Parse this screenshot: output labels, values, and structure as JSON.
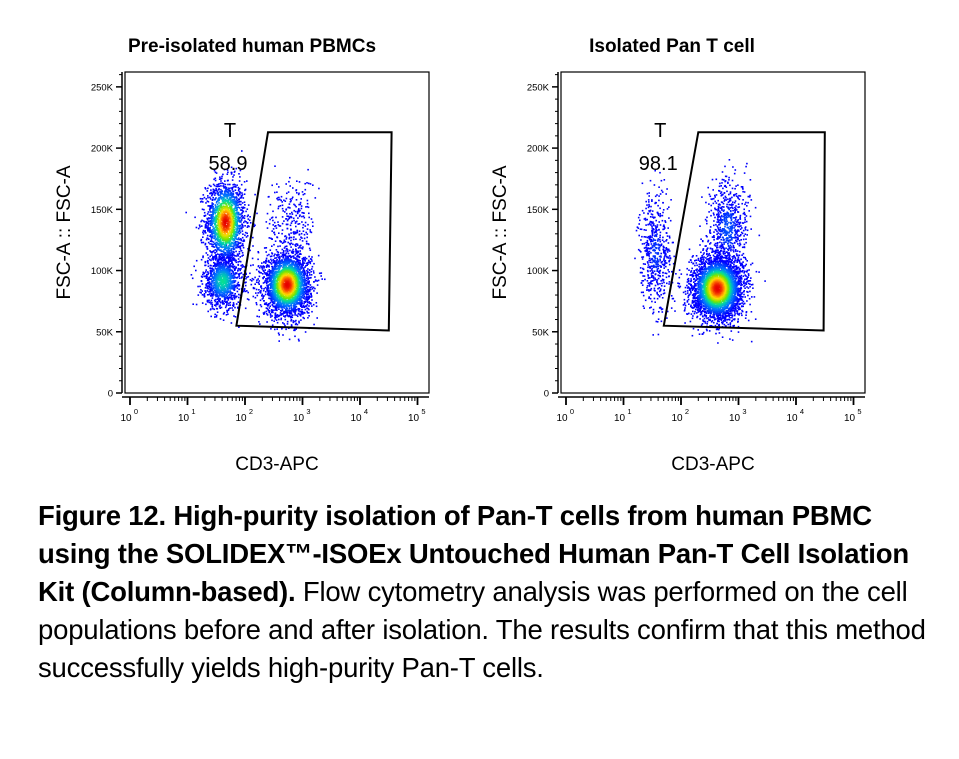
{
  "figure": {
    "caption_bold": "Figure 12. High-purity isolation of Pan-T cells from human PBMC using the SOLIDEX™-ISOEx Untouched Human Pan-T Cell Isolation Kit (Column-based).",
    "caption_text": " Flow cytometry analysis was performed on the cell populations before and after isolation. The results confirm that this method successfully yields high-purity Pan-T cells."
  },
  "panels": [
    {
      "title": "Pre-isolated human PBMCs",
      "gate_label": "T",
      "gate_value": "58.9"
    },
    {
      "title": "Isolated Pan T cell",
      "gate_label": "T",
      "gate_value": "98.1"
    }
  ],
  "axes": {
    "ylabel": "FSC-A :: FSC-A",
    "xlabel": "CD3-APC",
    "yticks": [
      "0",
      "50K",
      "100K",
      "150K",
      "200K",
      "250K"
    ],
    "xticks": [
      "0",
      "1",
      "2",
      "3",
      "4",
      "5"
    ]
  },
  "chart_data": [
    {
      "type": "scatter",
      "title": "Pre-isolated human PBMCs",
      "xlabel": "CD3-APC",
      "ylabel": "FSC-A :: FSC-A",
      "xscale": "log",
      "xlim": [
        1,
        100000
      ],
      "ylim": [
        0,
        262144
      ],
      "yticks": [
        0,
        50000,
        100000,
        150000,
        200000,
        250000
      ],
      "xticks": [
        1,
        10,
        100,
        1000,
        10000,
        100000
      ],
      "gate": {
        "name": "T",
        "percent": 58.9,
        "polygon_log10x_y": [
          [
            1.85,
            55000
          ],
          [
            2.4,
            213000
          ],
          [
            4.55,
            213000
          ],
          [
            4.5,
            51000
          ]
        ]
      },
      "clusters": [
        {
          "name": "CD3- high FSC",
          "log10x_center": 1.65,
          "y_center": 140000,
          "log10x_sd": 0.17,
          "y_sd": 17000,
          "n": 1800
        },
        {
          "name": "CD3- low FSC",
          "log10x_center": 1.6,
          "y_center": 92000,
          "log10x_sd": 0.17,
          "y_sd": 11000,
          "n": 1100
        },
        {
          "name": "T cells (CD3+)",
          "log10x_center": 2.72,
          "y_center": 89000,
          "log10x_sd": 0.2,
          "y_sd": 13000,
          "n": 2800
        },
        {
          "name": "CD3+ high FSC sparse",
          "log10x_center": 2.8,
          "y_center": 140000,
          "log10x_sd": 0.2,
          "y_sd": 18000,
          "n": 260
        }
      ]
    },
    {
      "type": "scatter",
      "title": "Isolated Pan T cell",
      "xlabel": "CD3-APC",
      "ylabel": "FSC-A :: FSC-A",
      "xscale": "log",
      "xlim": [
        1,
        100000
      ],
      "ylim": [
        0,
        262144
      ],
      "yticks": [
        0,
        50000,
        100000,
        150000,
        200000,
        250000
      ],
      "xticks": [
        1,
        10,
        100,
        1000,
        10000,
        100000
      ],
      "gate": {
        "name": "T",
        "percent": 98.1,
        "polygon_log10x_y": [
          [
            1.7,
            55000
          ],
          [
            2.3,
            213000
          ],
          [
            4.5,
            213000
          ],
          [
            4.48,
            51000
          ]
        ]
      },
      "clusters": [
        {
          "name": "T cells (CD3+)",
          "log10x_center": 2.62,
          "y_center": 86000,
          "log10x_sd": 0.22,
          "y_sd": 13000,
          "n": 3600
        },
        {
          "name": "CD3+ high FSC",
          "log10x_center": 2.8,
          "y_center": 135000,
          "log10x_sd": 0.17,
          "y_sd": 20000,
          "n": 650
        },
        {
          "name": "CD3- residual",
          "log10x_center": 1.55,
          "y_center": 115000,
          "log10x_sd": 0.14,
          "y_sd": 25000,
          "n": 550
        }
      ]
    }
  ]
}
